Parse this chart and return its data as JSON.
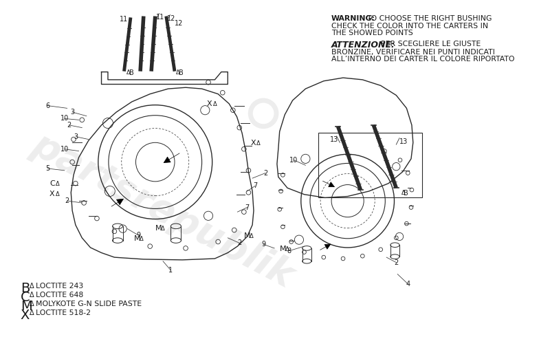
{
  "fig_width": 8.0,
  "fig_height": 4.9,
  "dpi": 100,
  "bg_color": "#ffffff",
  "text_color": "#1a1a1a",
  "diagram_color": "#2a2a2a",
  "line_color": "#333333",
  "warning_bold": "WARNING:",
  "warning_rest": " TO CHOOSE THE RIGHT BUSHING\nCHECK THE COLOR INTO THE CARTERS IN\nTHE SHOWED POINTS",
  "attenzione_bold": "ATTENZIONE:",
  "attenzione_rest": " PER SCEGLIERE LE GIUSTE\nBRONZINE, VERIFICARE NEI PUNTI INDICATI\nALL’INTERNO DEI CARTER IL COLORE RIPORTATO",
  "legend": [
    {
      "sym": "B",
      "text": "  LOCTITE 243"
    },
    {
      "sym": "C",
      "text": "  LOCTITE 648"
    },
    {
      "sym": "M",
      "text": "  MOLYKOTE G-N SLIDE PASTE"
    },
    {
      "sym": "X",
      "text": "  LOCTITE 518-2"
    }
  ],
  "watermark": "partsrepublik",
  "wm_color": "#c8c8c8",
  "wm_alpha": 0.32
}
